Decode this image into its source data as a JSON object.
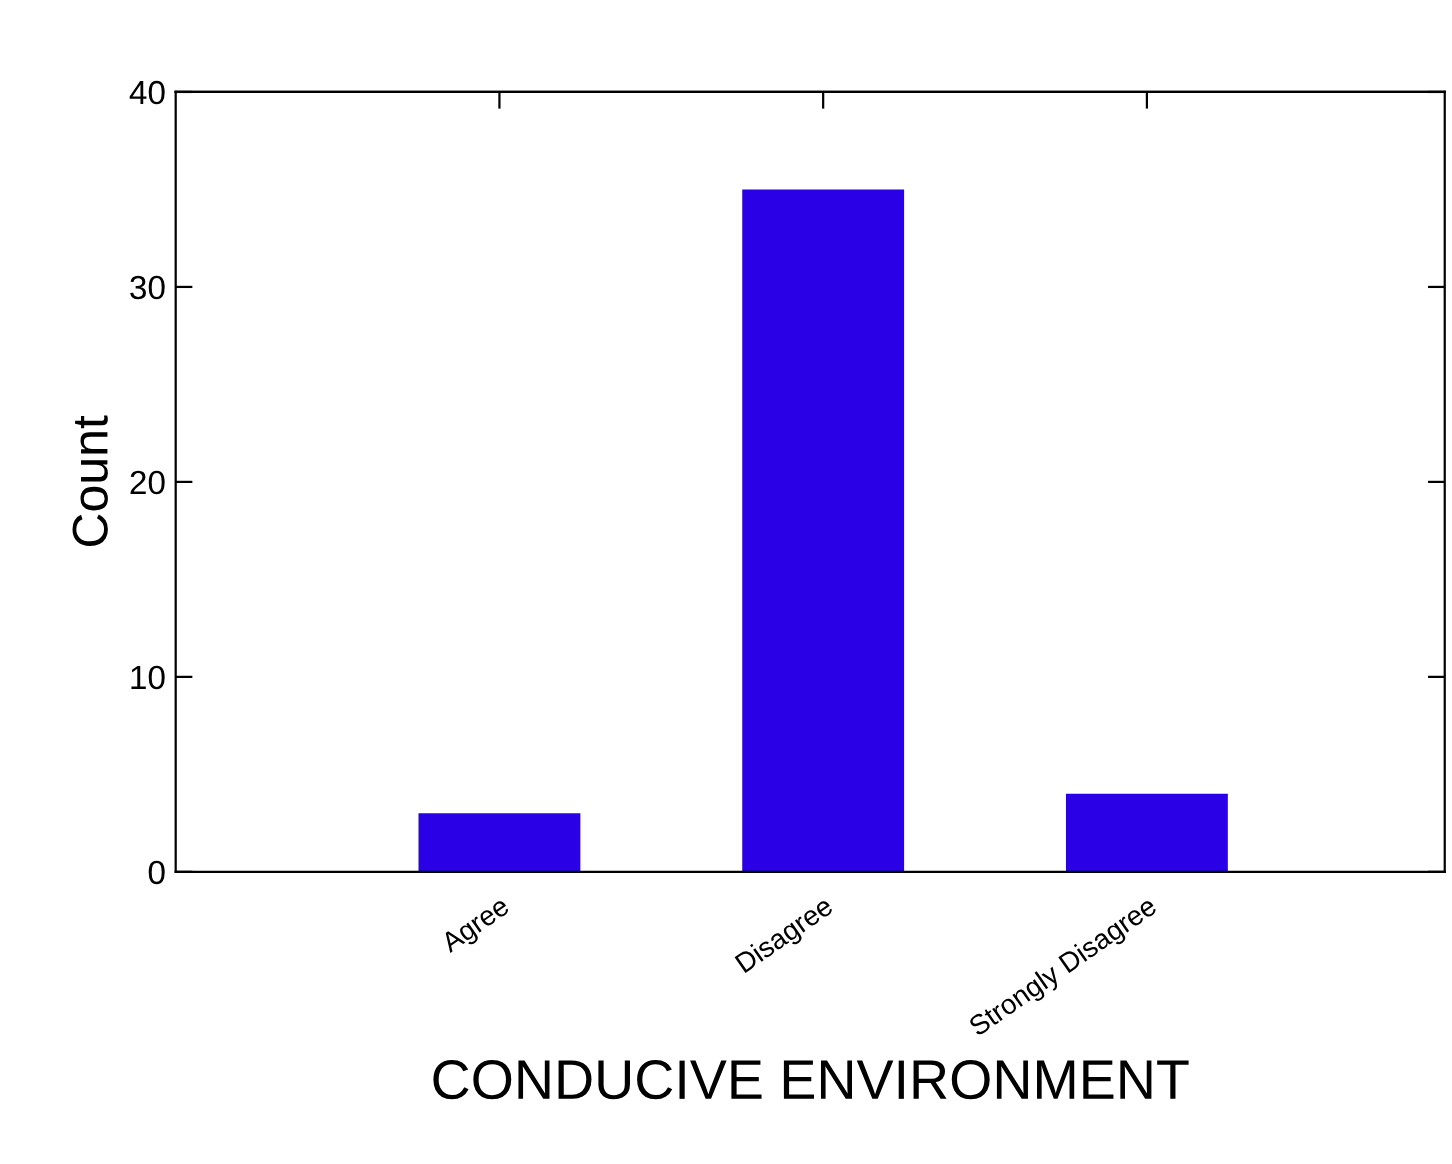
{
  "chart_data": {
    "type": "bar",
    "xlabel": "CONDUCIVE ENVIRONMENT",
    "ylabel": "Count",
    "categories": [
      "Agree",
      "Disagree",
      "Strongly Disagree"
    ],
    "values": [
      3,
      35,
      4
    ],
    "color": "#2a00e6",
    "ylim": [
      0,
      40
    ],
    "yticks": [
      0,
      10,
      20,
      30,
      40
    ],
    "grid": false
  }
}
